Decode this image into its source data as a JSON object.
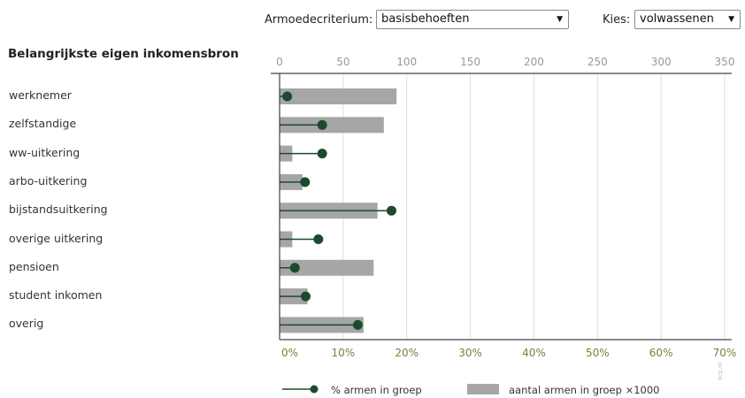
{
  "controls": {
    "criterion_label": "Armoedecriterium:",
    "criterion_value": "basisbehoeften",
    "choose_label": "Kies:",
    "choose_value": "volwassenen",
    "dropdown_icon": "triangle-down"
  },
  "legend": {
    "line_label": "% armen in groep",
    "bar_label": "aantal armen in groep ×1000"
  },
  "credit": "scp.nl",
  "colors": {
    "bar": "#a6a6a6",
    "dot": "#1d4a2e",
    "grid": "#dddddd",
    "bottom_axis_text": "#6a8a3a",
    "top_axis_text": "#999999"
  },
  "chart_data": {
    "type": "bar",
    "title": "Belangrijkste eigen inkomensbron",
    "categories": [
      "werknemer",
      "zelfstandige",
      "ww-uitkering",
      "arbo-uitkering",
      "bijstandsuitkering",
      "overige uitkering",
      "pensioen",
      "student inkomen",
      "overig"
    ],
    "series": [
      {
        "name": "aantal armen in groep ×1000",
        "axis": "top",
        "values": [
          92,
          82,
          10,
          18,
          77,
          10,
          74,
          22,
          66
        ]
      },
      {
        "name": "% armen in groep",
        "axis": "bottom",
        "values": [
          1.2,
          6.7,
          6.7,
          4.0,
          17.6,
          6.1,
          2.4,
          4.1,
          12.3
        ]
      }
    ],
    "top_axis": {
      "ticks": [
        "0",
        "50",
        "100",
        "150",
        "200",
        "250",
        "300",
        "350"
      ],
      "xlim": [
        0,
        350
      ]
    },
    "bottom_axis": {
      "ticks": [
        "0%",
        "10%",
        "20%",
        "30%",
        "40%",
        "50%",
        "60%",
        "70%"
      ],
      "xlim": [
        0,
        70
      ]
    },
    "grid": true,
    "legend_position": "bottom"
  }
}
